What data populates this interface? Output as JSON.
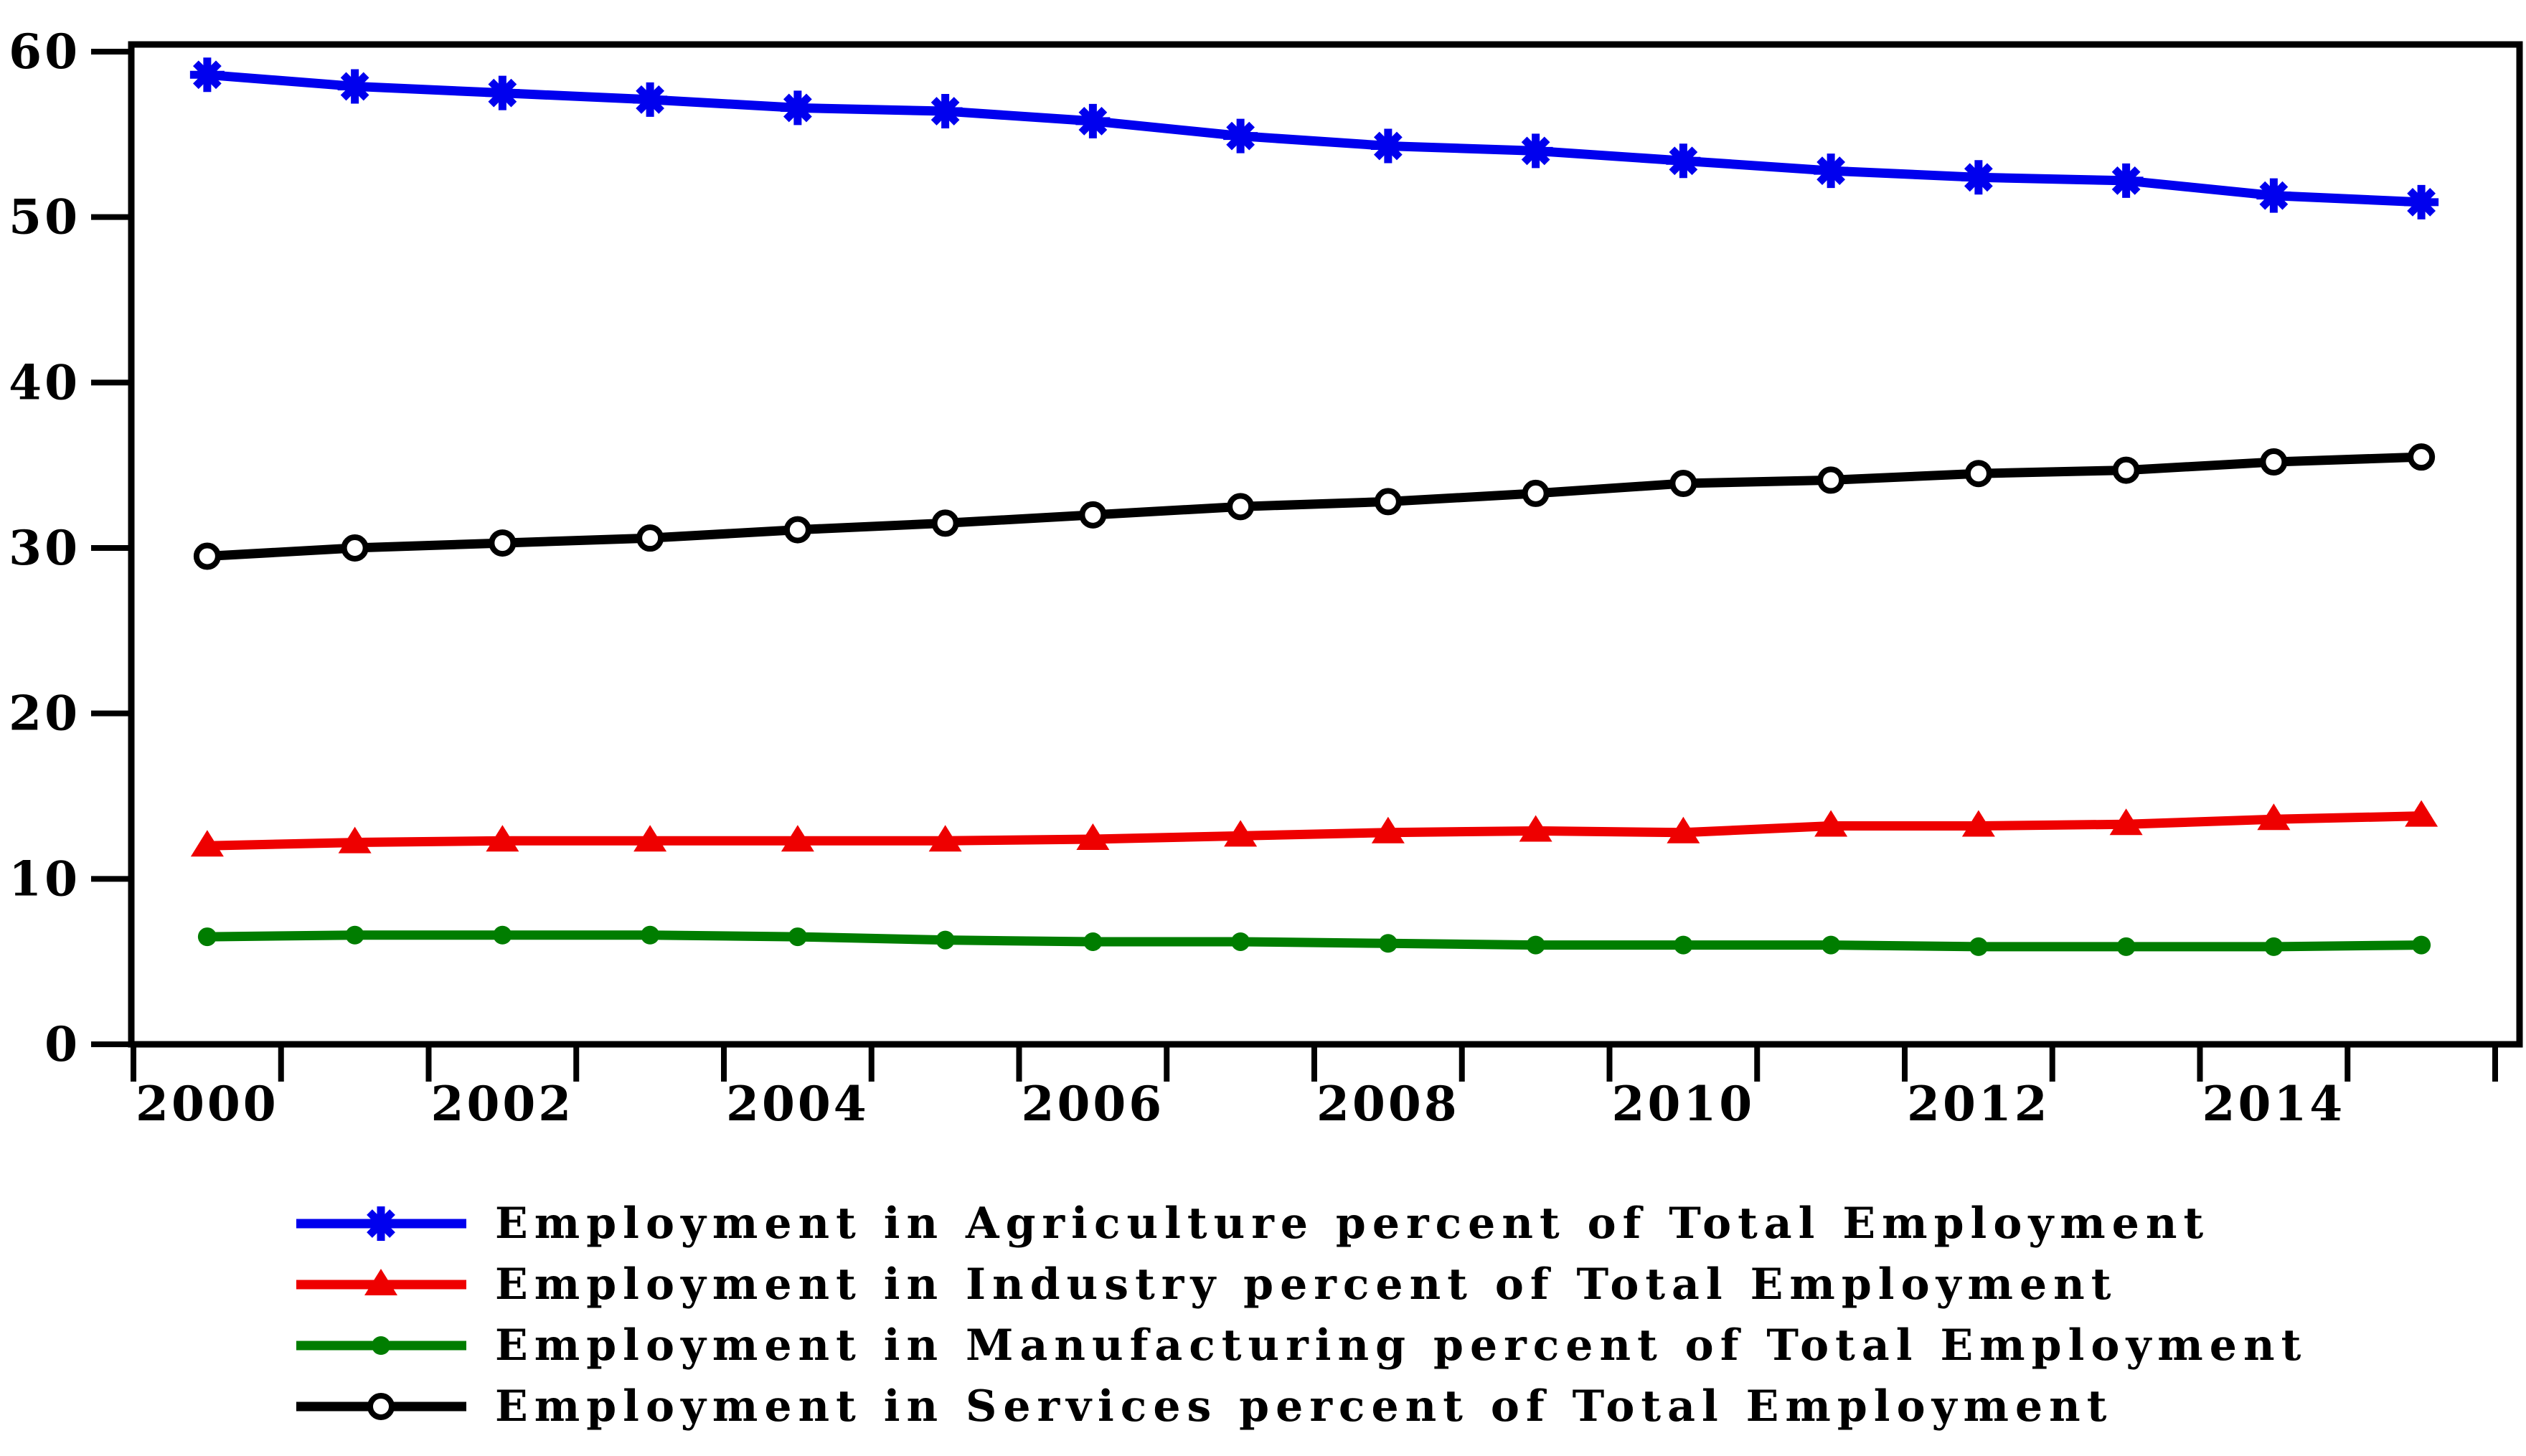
{
  "page": {
    "background": "#ffffff",
    "axis_color": "#000000"
  },
  "chart_data": {
    "type": "line",
    "title": "",
    "xlabel": "",
    "ylabel": "",
    "grid": false,
    "legend_position": "bottom",
    "x": [
      2000,
      2001,
      2002,
      2003,
      2004,
      2005,
      2006,
      2007,
      2008,
      2009,
      2010,
      2011,
      2012,
      2013,
      2014,
      2015
    ],
    "xtick_labels": [
      "2000",
      "2002",
      "2004",
      "2006",
      "2008",
      "2010",
      "2012",
      "2014"
    ],
    "yticks": [
      0,
      10,
      20,
      30,
      40,
      50,
      60
    ],
    "ytick_labels": [
      "0",
      "10",
      "20",
      "30",
      "40",
      "50",
      "60"
    ],
    "ylim": [
      0,
      60
    ],
    "series": [
      {
        "key": "agriculture",
        "name": "Employment in Agriculture percent of Total Employment",
        "color": "#0000ee",
        "marker": "asterisk",
        "values": [
          58.6,
          57.9,
          57.5,
          57.1,
          56.6,
          56.4,
          55.8,
          54.9,
          54.3,
          54.0,
          53.4,
          52.8,
          52.4,
          52.2,
          51.3,
          50.9
        ]
      },
      {
        "key": "industry",
        "name": "Employment in Industry percent of Total Employment",
        "color": "#ee0000",
        "marker": "triangle-filled",
        "values": [
          12.0,
          12.2,
          12.3,
          12.3,
          12.3,
          12.3,
          12.4,
          12.6,
          12.8,
          12.9,
          12.8,
          13.2,
          13.2,
          13.3,
          13.6,
          13.8
        ]
      },
      {
        "key": "manufacturing",
        "name": "Employment in Manufacturing percent of Total Employment",
        "color": "#007d00",
        "marker": "dot-filled",
        "values": [
          6.5,
          6.6,
          6.6,
          6.6,
          6.5,
          6.3,
          6.2,
          6.2,
          6.1,
          6.0,
          6.0,
          6.0,
          5.9,
          5.9,
          5.9,
          6.0
        ]
      },
      {
        "key": "services",
        "name": "Employment in Services percent of Total Employment",
        "color": "#000000",
        "marker": "circle-open",
        "values": [
          29.5,
          30.0,
          30.3,
          30.6,
          31.1,
          31.5,
          32.0,
          32.5,
          32.8,
          33.3,
          33.9,
          34.1,
          34.5,
          34.7,
          35.2,
          35.5
        ]
      }
    ]
  }
}
